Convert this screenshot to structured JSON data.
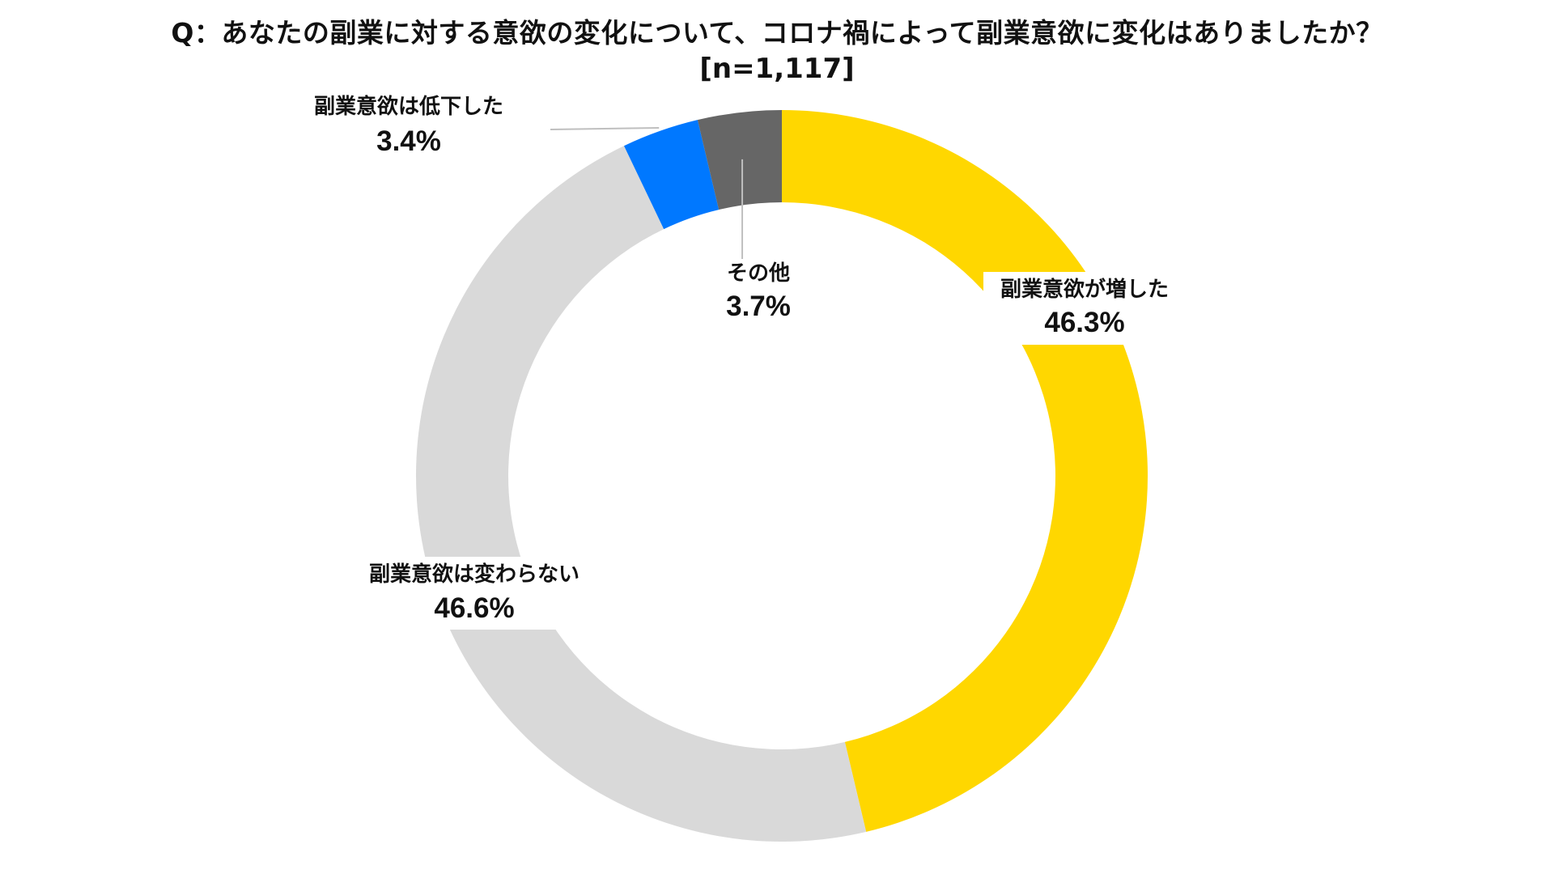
{
  "title": "Q：あなたの副業に対する意欲の変化について、コロナ禍によって副業意欲に変化はありましたか？",
  "subtitle": "[n=1,117]",
  "chart_data": {
    "type": "pie",
    "variant": "donut",
    "title": "Q：あなたの副業に対する意欲の変化について、コロナ禍によって副業意欲に変化はありましたか？",
    "subtitle": "[n=1,117]",
    "start": "top",
    "direction": "clockwise",
    "slices": [
      {
        "label": "副業意欲が増した",
        "value": 46.3,
        "value_label": "46.3%",
        "color": "#FFD700"
      },
      {
        "label": "副業意欲は変わらない",
        "value": 46.6,
        "value_label": "46.6%",
        "color": "#D9D9D9"
      },
      {
        "label": "副業意欲は低下した",
        "value": 3.4,
        "value_label": "3.4%",
        "color": "#0078FF"
      },
      {
        "label": "その他",
        "value": 3.7,
        "value_label": "3.7%",
        "color": "#666666"
      }
    ],
    "leader_line_color": "#BFBFBF",
    "legend": "none"
  }
}
